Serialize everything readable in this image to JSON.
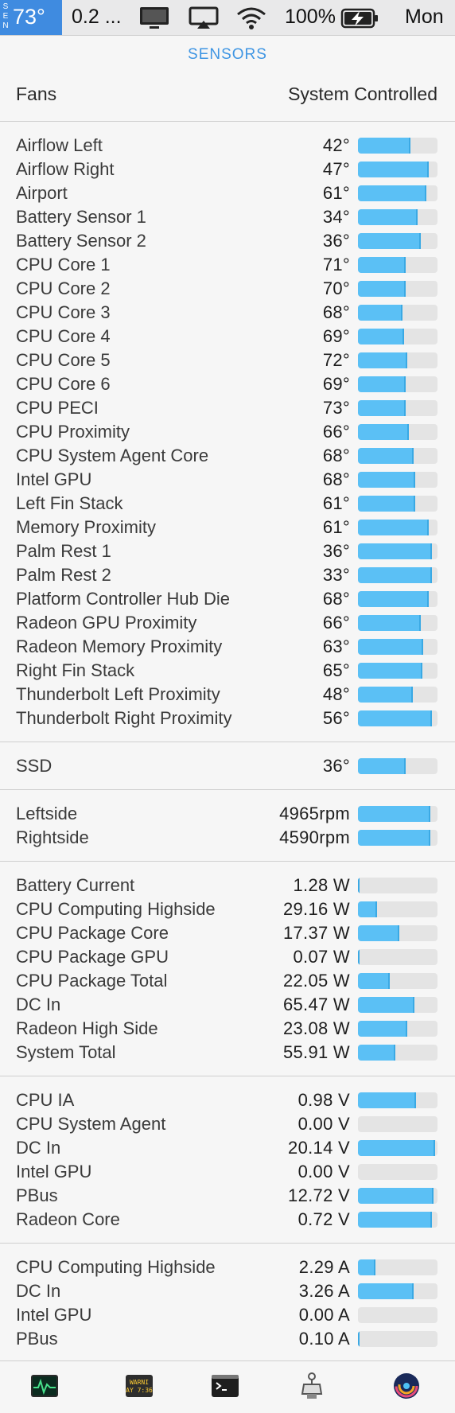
{
  "menubar": {
    "sensor_label": "SEN",
    "temperature": "73°",
    "cpu_text": "0.2 ...",
    "battery_percent": "100%",
    "clock": "Mon",
    "accent_color": "#3f8be0"
  },
  "panel": {
    "title": "SENSORS",
    "fans_label": "Fans",
    "fans_mode": "System Controlled"
  },
  "colors": {
    "bar_fill": "#5bc0f5",
    "bar_track": "#e4e4e4",
    "title": "#3e95e3"
  },
  "temperatures": [
    {
      "label": "Airflow Left",
      "value": "42°",
      "level": 0.66
    },
    {
      "label": "Airflow Right",
      "value": "47°",
      "level": 0.89
    },
    {
      "label": "Airport",
      "value": "61°",
      "level": 0.86
    },
    {
      "label": "Battery Sensor 1",
      "value": "34°",
      "level": 0.75
    },
    {
      "label": "Battery Sensor 2",
      "value": "36°",
      "level": 0.79
    },
    {
      "label": "CPU Core 1",
      "value": "71°",
      "level": 0.6
    },
    {
      "label": "CPU Core 2",
      "value": "70°",
      "level": 0.6
    },
    {
      "label": "CPU Core 3",
      "value": "68°",
      "level": 0.56
    },
    {
      "label": "CPU Core 4",
      "value": "69°",
      "level": 0.58
    },
    {
      "label": "CPU Core 5",
      "value": "72°",
      "level": 0.62
    },
    {
      "label": "CPU Core 6",
      "value": "69°",
      "level": 0.6
    },
    {
      "label": "CPU PECI",
      "value": "73°",
      "level": 0.6
    },
    {
      "label": "CPU Proximity",
      "value": "66°",
      "level": 0.64
    },
    {
      "label": "CPU System Agent Core",
      "value": "68°",
      "level": 0.7
    },
    {
      "label": "Intel GPU",
      "value": "68°",
      "level": 0.72
    },
    {
      "label": "Left Fin Stack",
      "value": "61°",
      "level": 0.72
    },
    {
      "label": "Memory Proximity",
      "value": "61°",
      "level": 0.89
    },
    {
      "label": "Palm Rest 1",
      "value": "36°",
      "level": 0.93
    },
    {
      "label": "Palm Rest 2",
      "value": "33°",
      "level": 0.93
    },
    {
      "label": "Platform Controller Hub Die",
      "value": "68°",
      "level": 0.89
    },
    {
      "label": "Radeon GPU Proximity",
      "value": "66°",
      "level": 0.79
    },
    {
      "label": "Radeon Memory Proximity",
      "value": "63°",
      "level": 0.82
    },
    {
      "label": "Right Fin Stack",
      "value": "65°",
      "level": 0.81
    },
    {
      "label": "Thunderbolt Left Proximity",
      "value": "48°",
      "level": 0.69
    },
    {
      "label": "Thunderbolt Right Proximity",
      "value": "56°",
      "level": 0.93
    }
  ],
  "storage": [
    {
      "label": "SSD",
      "value": "36°",
      "level": 0.6
    }
  ],
  "fans": [
    {
      "label": "Leftside",
      "value": "4965rpm",
      "level": 0.91
    },
    {
      "label": "Rightside",
      "value": "4590rpm",
      "level": 0.91
    }
  ],
  "power": [
    {
      "label": "Battery Current",
      "value": "1.28 W",
      "level": 0.02
    },
    {
      "label": "CPU Computing Highside",
      "value": "29.16 W",
      "level": 0.24
    },
    {
      "label": "CPU Package Core",
      "value": "17.37 W",
      "level": 0.52
    },
    {
      "label": "CPU Package GPU",
      "value": "0.07 W",
      "level": 0.02
    },
    {
      "label": "CPU Package Total",
      "value": "22.05 W",
      "level": 0.4
    },
    {
      "label": "DC In",
      "value": "65.47 W",
      "level": 0.71
    },
    {
      "label": "Radeon High Side",
      "value": "23.08 W",
      "level": 0.62
    },
    {
      "label": "System Total",
      "value": "55.91 W",
      "level": 0.47
    }
  ],
  "voltage": [
    {
      "label": "CPU IA",
      "value": "0.98 V",
      "level": 0.73
    },
    {
      "label": "CPU System Agent",
      "value": "0.00 V",
      "level": 0.0
    },
    {
      "label": "DC In",
      "value": "20.14 V",
      "level": 0.97
    },
    {
      "label": "Intel GPU",
      "value": "0.00 V",
      "level": 0.0
    },
    {
      "label": "PBus",
      "value": "12.72 V",
      "level": 0.95
    },
    {
      "label": "Radeon Core",
      "value": "0.72 V",
      "level": 0.93
    }
  ],
  "current": [
    {
      "label": "CPU Computing Highside",
      "value": "2.29 A",
      "level": 0.22
    },
    {
      "label": "DC In",
      "value": "3.26 A",
      "level": 0.7
    },
    {
      "label": "Intel GPU",
      "value": "0.00 A",
      "level": 0.0
    },
    {
      "label": "PBus",
      "value": "0.10 A",
      "level": 0.02
    }
  ],
  "dock": {
    "items": [
      "activity-monitor-icon",
      "console-icon",
      "terminal-icon",
      "system-information-icon",
      "istat-icon"
    ],
    "console_text": "WARNI",
    "console_time": "AY 7:36"
  }
}
